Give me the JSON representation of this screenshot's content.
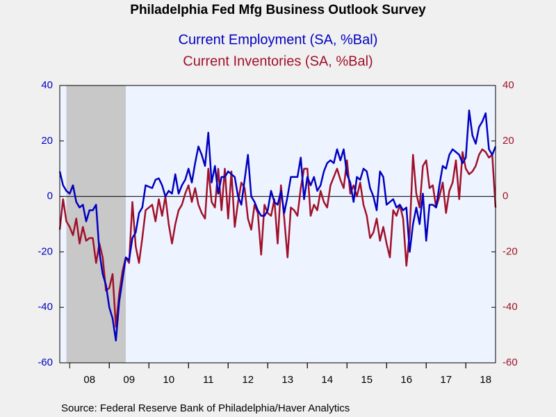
{
  "chart_data": {
    "type": "line",
    "title": "Philadelphia Fed Mfg Business Outlook Survey",
    "source": "Source:  Federal Reserve Bank of Philadelphia/Haver Analytics",
    "categories": [
      null,
      null,
      null,
      null,
      null,
      null,
      null,
      null,
      null,
      "08",
      null,
      null,
      null,
      null,
      null,
      null,
      null,
      null,
      null,
      null,
      null,
      "09",
      null,
      null,
      null,
      null,
      null,
      null,
      null,
      null,
      null,
      null,
      null,
      "10",
      null,
      null,
      null,
      null,
      null,
      null,
      null,
      null,
      null,
      null,
      null,
      "11",
      null,
      null,
      null,
      null,
      null,
      null,
      null,
      null,
      null,
      null,
      null,
      "12",
      null,
      null,
      null,
      null,
      null,
      null,
      null,
      null,
      null,
      null,
      null,
      "13",
      null,
      null,
      null,
      null,
      null,
      null,
      null,
      null,
      null,
      null,
      null,
      "14",
      null,
      null,
      null,
      null,
      null,
      null,
      null,
      null,
      null,
      null,
      null,
      "15",
      null,
      null,
      null,
      null,
      null,
      null,
      null,
      null,
      null,
      null,
      null,
      "16",
      null,
      null,
      null,
      null,
      null,
      null,
      null,
      null,
      null,
      null,
      null,
      "17",
      null,
      null,
      null,
      null,
      null,
      null,
      null,
      null,
      null,
      null,
      null,
      "18",
      null,
      null,
      null
    ],
    "recession": [
      2,
      20
    ],
    "recession_color": "#c8c8c8",
    "plot_background": "#eef4ff",
    "series": [
      {
        "name": "Current Employment (SA, %Bal)",
        "color": "#0000c0",
        "axis": "y",
        "values": [
          9,
          4,
          2,
          1,
          4,
          -2,
          -4,
          -3,
          -9,
          -5,
          -5,
          -3,
          -20,
          -28,
          -32,
          -40,
          -44,
          -52,
          -38,
          -30,
          -22,
          -23,
          -15,
          -13,
          -6,
          -4,
          4,
          3.5,
          3,
          6,
          6.5,
          4,
          0,
          2,
          1,
          8,
          1,
          4,
          6,
          10,
          5,
          12,
          18,
          15,
          11,
          23,
          5,
          11,
          1,
          7,
          7,
          9,
          8,
          7,
          0,
          -3,
          6,
          15,
          0,
          -2,
          -5,
          -7,
          -7,
          -5,
          2,
          -2,
          -3,
          2,
          -6,
          0,
          7,
          7,
          7,
          14,
          -1,
          7,
          4,
          7,
          2,
          4,
          9,
          12,
          13,
          12,
          17,
          13,
          17,
          8,
          5,
          -2,
          7,
          6,
          10,
          9,
          3,
          0,
          -5,
          9,
          7,
          -3,
          -2,
          -1,
          -4,
          -3,
          -5,
          -4,
          -20,
          -10,
          -4,
          -10,
          1,
          -16,
          -3,
          -3,
          -4,
          4,
          11,
          10,
          15,
          17,
          16,
          15,
          12,
          14,
          31,
          22,
          19,
          25,
          27,
          30,
          17,
          15,
          18
        ]
      },
      {
        "name": "Current Inventories (SA, %Bal)",
        "color": "#a0102a",
        "axis": "y2",
        "values": [
          -12,
          -1,
          -9,
          -11,
          -14,
          -8,
          -17,
          -11,
          -16,
          -15,
          -15,
          -24,
          -17,
          -22,
          -34,
          -33,
          -28,
          -47,
          -35,
          -27,
          -22,
          -24,
          -2,
          -18,
          -24,
          -15,
          -5,
          -4,
          -3,
          -9,
          -1,
          -7,
          0,
          -10,
          -17,
          -10,
          -5,
          -3,
          1,
          4,
          -2,
          3,
          -3,
          -6,
          -8,
          10,
          -2,
          -4,
          10,
          -5,
          10,
          -8,
          9,
          -11,
          -2,
          5,
          3,
          -8,
          -12,
          -3,
          -6,
          -21,
          -3,
          -6,
          -7,
          -1,
          -17,
          4,
          -8,
          -22,
          -4,
          -5,
          -7,
          3,
          10,
          10,
          -7,
          -3,
          -5,
          2,
          -2,
          -4,
          4,
          7,
          10,
          6,
          3,
          13,
          1,
          4,
          0,
          5,
          -3,
          -7,
          -15,
          -13,
          -8,
          -16,
          -11,
          -17,
          -22,
          -5,
          -7,
          -3,
          -8,
          -25,
          -13,
          15,
          1,
          -4,
          11,
          13,
          3,
          4,
          -4,
          0,
          5,
          -6,
          2,
          5,
          13,
          -1,
          16,
          10,
          8,
          9,
          11,
          15,
          17,
          16,
          14,
          15,
          -4
        ]
      }
    ],
    "ylim": [
      -60,
      40
    ],
    "yticks": [
      -60,
      -40,
      -20,
      0,
      20,
      40
    ],
    "y2lim": [
      -60,
      40
    ],
    "y2ticks": [
      -60,
      -40,
      -20,
      0,
      20,
      40
    ]
  }
}
